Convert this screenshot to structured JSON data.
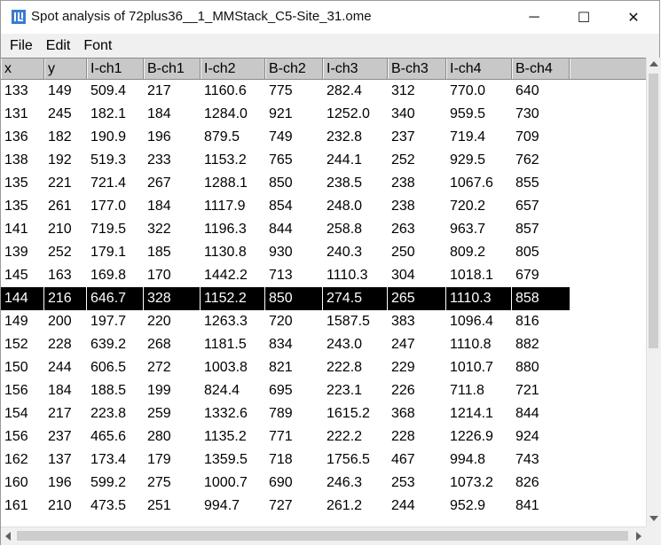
{
  "window": {
    "title": "Spot analysis of 72plus36__1_MMStack_C5-Site_31.ome",
    "minimize_glyph": "─",
    "maximize_glyph": "☐",
    "close_glyph": "✕",
    "app_icon": "imagej-icon"
  },
  "menu": {
    "items": [
      "File",
      "Edit",
      "Font"
    ]
  },
  "table": {
    "columns": [
      "x",
      "y",
      "I-ch1",
      "B-ch1",
      "I-ch2",
      "B-ch2",
      "I-ch3",
      "B-ch3",
      "I-ch4",
      "B-ch4"
    ],
    "selected_row_index": 9,
    "rows": [
      [
        "133",
        "149",
        "509.4",
        "217",
        "1160.6",
        "775",
        "282.4",
        "312",
        "770.0",
        "640"
      ],
      [
        "131",
        "245",
        "182.1",
        "184",
        "1284.0",
        "921",
        "1252.0",
        "340",
        "959.5",
        "730"
      ],
      [
        "136",
        "182",
        "190.9",
        "196",
        "879.5",
        "749",
        "232.8",
        "237",
        "719.4",
        "709"
      ],
      [
        "138",
        "192",
        "519.3",
        "233",
        "1153.2",
        "765",
        "244.1",
        "252",
        "929.5",
        "762"
      ],
      [
        "135",
        "221",
        "721.4",
        "267",
        "1288.1",
        "850",
        "238.5",
        "238",
        "1067.6",
        "855"
      ],
      [
        "135",
        "261",
        "177.0",
        "184",
        "1117.9",
        "854",
        "248.0",
        "238",
        "720.2",
        "657"
      ],
      [
        "141",
        "210",
        "719.5",
        "322",
        "1196.3",
        "844",
        "258.8",
        "263",
        "963.7",
        "857"
      ],
      [
        "139",
        "252",
        "179.1",
        "185",
        "1130.8",
        "930",
        "240.3",
        "250",
        "809.2",
        "805"
      ],
      [
        "145",
        "163",
        "169.8",
        "170",
        "1442.2",
        "713",
        "1110.3",
        "304",
        "1018.1",
        "679"
      ],
      [
        "144",
        "216",
        "646.7",
        "328",
        "1152.2",
        "850",
        "274.5",
        "265",
        "1110.3",
        "858"
      ],
      [
        "149",
        "200",
        "197.7",
        "220",
        "1263.3",
        "720",
        "1587.5",
        "383",
        "1096.4",
        "816"
      ],
      [
        "152",
        "228",
        "639.2",
        "268",
        "1181.5",
        "834",
        "243.0",
        "247",
        "1110.8",
        "882"
      ],
      [
        "150",
        "244",
        "606.5",
        "272",
        "1003.8",
        "821",
        "222.8",
        "229",
        "1010.7",
        "880"
      ],
      [
        "156",
        "184",
        "188.5",
        "199",
        "824.4",
        "695",
        "223.1",
        "226",
        "711.8",
        "721"
      ],
      [
        "154",
        "217",
        "223.8",
        "259",
        "1332.6",
        "789",
        "1615.2",
        "368",
        "1214.1",
        "844"
      ],
      [
        "156",
        "237",
        "465.6",
        "280",
        "1135.2",
        "771",
        "222.2",
        "228",
        "1226.9",
        "924"
      ],
      [
        "162",
        "137",
        "173.4",
        "179",
        "1359.5",
        "718",
        "1756.5",
        "467",
        "994.8",
        "743"
      ],
      [
        "160",
        "196",
        "599.2",
        "275",
        "1000.7",
        "690",
        "246.3",
        "253",
        "1073.2",
        "826"
      ],
      [
        "161",
        "210",
        "473.5",
        "251",
        "994.7",
        "727",
        "261.2",
        "244",
        "952.9",
        "841"
      ]
    ]
  },
  "colors": {
    "header_bg": "#c8c8c8",
    "selected_bg": "#000000",
    "selected_fg": "#ffffff",
    "menubar_bg": "#f0f0f0",
    "icon_blue": "#3b7bd0"
  }
}
